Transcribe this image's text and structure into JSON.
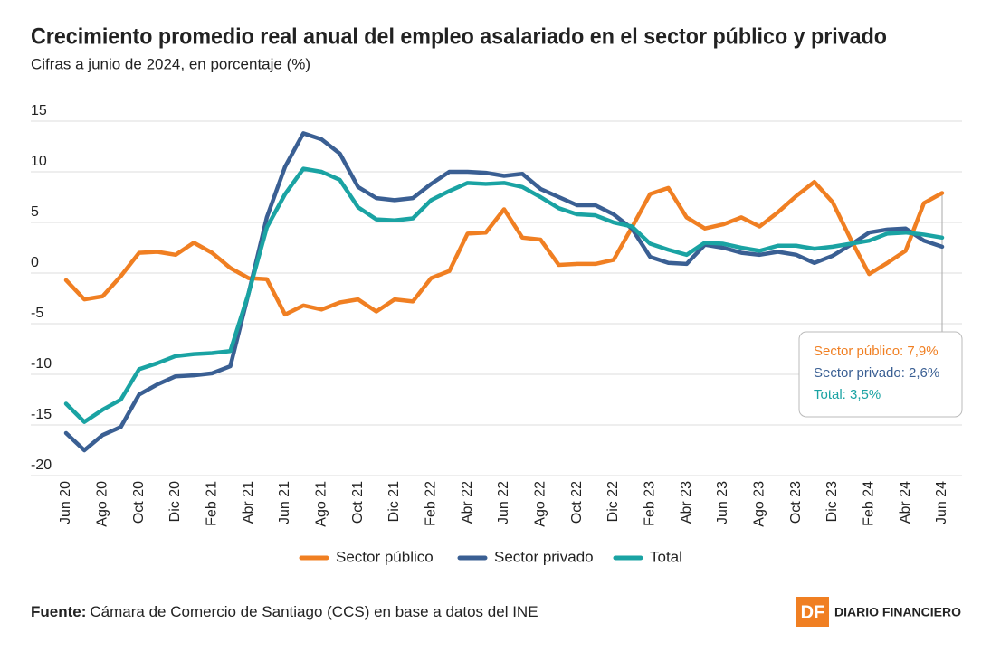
{
  "chart_data": {
    "type": "line",
    "title": "Crecimiento promedio real anual del empleo asalariado en el sector público y privado",
    "subtitle": "Cifras a junio de 2024, en porcentaje (%)",
    "categories": [
      "Jun 20",
      null,
      "Ago 20",
      null,
      "Oct 20",
      null,
      "Dic 20",
      null,
      "Feb 21",
      null,
      "Abr 21",
      null,
      "Jun 21",
      null,
      "Ago 21",
      null,
      "Oct 21",
      null,
      "Dic 21",
      null,
      "Feb 22",
      null,
      "Abr 22",
      null,
      "Jun 22",
      null,
      "Ago 22",
      null,
      "Oct 22",
      null,
      "Dic 22",
      null,
      "Feb 23",
      null,
      "Abr 23",
      null,
      "Jun 23",
      null,
      "Ago 23",
      null,
      "Oct 23",
      null,
      "Dic 23",
      null,
      "Feb 24",
      null,
      "Abr 24",
      null,
      "Jun 24"
    ],
    "series": [
      {
        "name": "Sector público",
        "color": "#f07f22",
        "values": [
          -0.7,
          -2.6,
          -2.3,
          -0.3,
          2.0,
          2.1,
          1.8,
          3.0,
          2.0,
          0.5,
          -0.5,
          -0.6,
          -4.1,
          -3.2,
          -3.6,
          -2.9,
          -2.6,
          -3.8,
          -2.6,
          -2.8,
          -0.5,
          0.2,
          3.9,
          4.0,
          6.3,
          3.5,
          3.3,
          0.8,
          0.9,
          0.9,
          1.3,
          4.5,
          7.8,
          8.4,
          5.5,
          4.4,
          4.8,
          5.5,
          4.6,
          6.0,
          7.6,
          9.0,
          7.0,
          3.3,
          -0.1,
          1.0,
          2.2,
          6.9,
          7.9
        ]
      },
      {
        "name": "Sector privado",
        "color": "#3a5f93",
        "values": [
          -15.8,
          -17.5,
          -16.0,
          -15.2,
          -12.0,
          -11.0,
          -10.2,
          -10.1,
          -9.9,
          -9.2,
          -2.0,
          5.5,
          10.5,
          13.8,
          13.2,
          11.8,
          8.5,
          7.4,
          7.2,
          7.4,
          8.8,
          10.0,
          10.0,
          9.9,
          9.6,
          9.8,
          8.3,
          7.5,
          6.7,
          6.7,
          5.8,
          4.4,
          1.6,
          1.0,
          0.9,
          2.8,
          2.5,
          2.0,
          1.8,
          2.1,
          1.8,
          1.0,
          1.7,
          2.8,
          4.0,
          4.3,
          4.4,
          3.2,
          2.6
        ]
      },
      {
        "name": "Total",
        "color": "#1aa3a3",
        "values": [
          -12.9,
          -14.7,
          -13.5,
          -12.5,
          -9.5,
          -8.9,
          -8.2,
          -8.0,
          -7.9,
          -7.7,
          -2.0,
          4.5,
          7.8,
          10.3,
          10.0,
          9.2,
          6.5,
          5.3,
          5.2,
          5.4,
          7.2,
          8.1,
          8.9,
          8.8,
          8.9,
          8.5,
          7.5,
          6.4,
          5.8,
          5.7,
          5.0,
          4.6,
          2.9,
          2.3,
          1.8,
          3.0,
          2.9,
          2.5,
          2.2,
          2.7,
          2.7,
          2.4,
          2.6,
          2.9,
          3.2,
          3.9,
          4.0,
          3.8,
          3.5
        ]
      }
    ],
    "ylim": [
      -20,
      15
    ],
    "yticks": [
      15,
      10,
      5,
      0,
      -5,
      -10,
      -15,
      -20
    ],
    "grid": true,
    "legend": "bottom",
    "tooltip": [
      "Sector público: 7,9%",
      "Sector privado: 2,6%",
      "Total: 3,5%"
    ],
    "source_label": "Fuente:",
    "source": "Cámara de Comercio de Santiago (CCS) en base a datos del INE",
    "logo_mark": "DF",
    "logo_text": "DIARIO FINANCIERO"
  }
}
